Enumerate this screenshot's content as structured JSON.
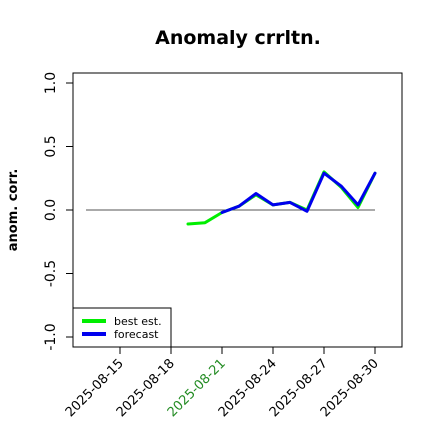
{
  "chart_data": {
    "type": "line",
    "title": "Anomaly crrltn.",
    "ylabel": "anom. corr.",
    "xlabel": "",
    "ylim": [
      -1.0,
      1.0
    ],
    "yticks": [
      "-1.0",
      "-0.5",
      "0.0",
      "0.5",
      "1.0"
    ],
    "x": [
      "2025-08-13",
      "2025-08-14",
      "2025-08-15",
      "2025-08-16",
      "2025-08-17",
      "2025-08-18",
      "2025-08-19",
      "2025-08-20",
      "2025-08-21",
      "2025-08-22",
      "2025-08-23",
      "2025-08-24",
      "2025-08-25",
      "2025-08-26",
      "2025-08-27",
      "2025-08-28",
      "2025-08-29",
      "2025-08-30"
    ],
    "xticks": [
      {
        "label": "2025-08-15",
        "color": "#000000"
      },
      {
        "label": "2025-08-18",
        "color": "#000000"
      },
      {
        "label": "2025-08-21",
        "color": "#228B22"
      },
      {
        "label": "2025-08-24",
        "color": "#000000"
      },
      {
        "label": "2025-08-27",
        "color": "#000000"
      },
      {
        "label": "2025-08-30",
        "color": "#000000"
      }
    ],
    "reference_line": 0.0,
    "series": [
      {
        "name": "best est.",
        "color": "#00ee00",
        "values": [
          null,
          null,
          null,
          null,
          null,
          null,
          -0.11,
          -0.1,
          -0.02,
          0.03,
          0.12,
          0.04,
          0.06,
          0.0,
          0.3,
          0.18,
          0.02,
          0.29
        ]
      },
      {
        "name": "forecast",
        "color": "#0000ee",
        "values": [
          null,
          null,
          null,
          null,
          null,
          null,
          null,
          null,
          -0.02,
          0.03,
          0.13,
          0.04,
          0.06,
          -0.01,
          0.29,
          0.19,
          0.04,
          0.29
        ]
      }
    ],
    "legend": "bottom-left",
    "grid": false
  }
}
